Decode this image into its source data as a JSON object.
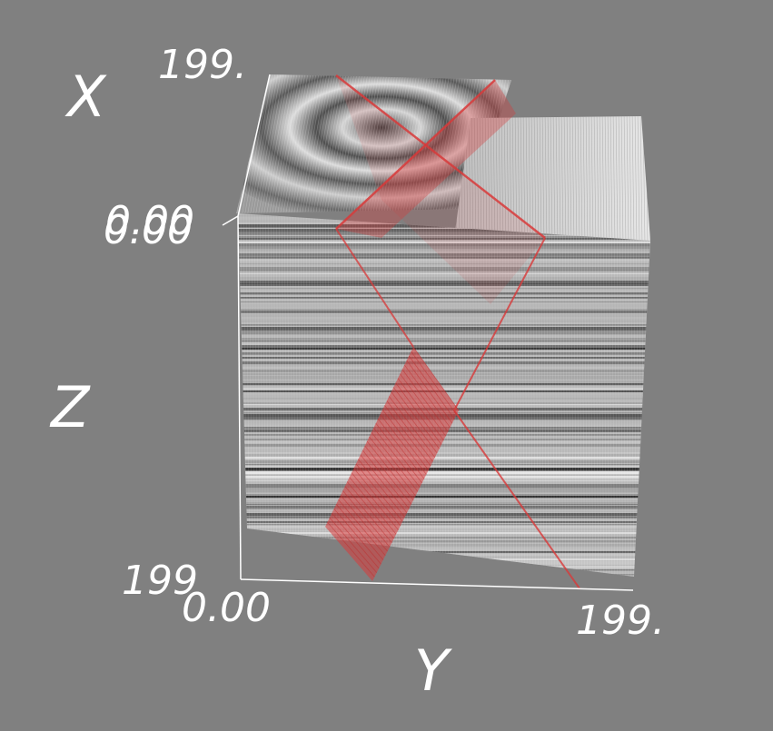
{
  "viewport": {
    "background": "#808080",
    "volume_tone": "grayscale",
    "slice_color": "#d83a3a",
    "axes_color": "#ffffff"
  },
  "axes": {
    "x": {
      "name": "X",
      "min_label": "0.00",
      "max_label": "199."
    },
    "y": {
      "name": "Y",
      "min_label": "0.00",
      "max_label": "199."
    },
    "z": {
      "name": "Z",
      "min_label": "0.00",
      "max_label": "199"
    }
  }
}
